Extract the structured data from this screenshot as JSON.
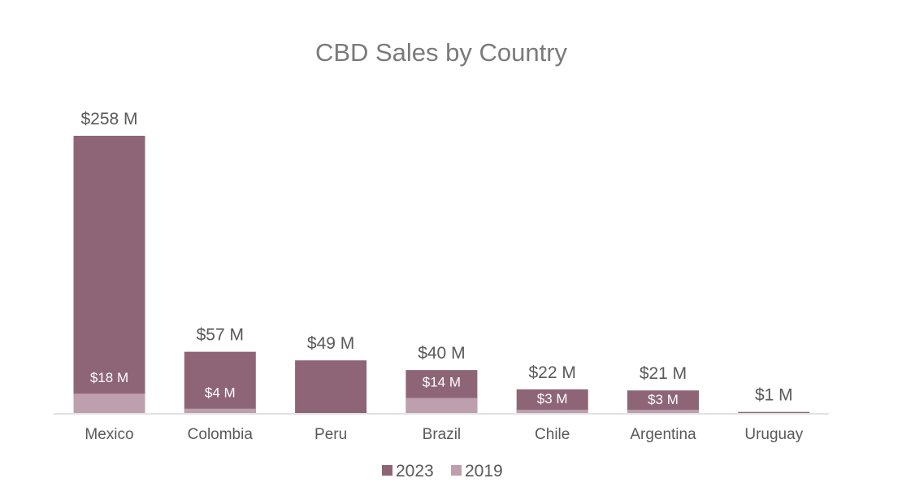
{
  "chart_data": {
    "type": "bar",
    "title": "CBD Sales by Country",
    "xlabel": "",
    "ylabel": "",
    "ylim": [
      0,
      258
    ],
    "grid": false,
    "legend_position": "bottom",
    "categories": [
      "Mexico",
      "Colombia",
      "Peru",
      "Brazil",
      "Chile",
      "Argentina",
      "Uruguay"
    ],
    "series": [
      {
        "name": "2023",
        "color": "#8e6577",
        "values": [
          258,
          57,
          49,
          40,
          22,
          21,
          1
        ],
        "labels": [
          "$258 M",
          "$57 M",
          "$49 M",
          "$40 M",
          "$22 M",
          "$21 M",
          "$1 M"
        ]
      },
      {
        "name": "2019",
        "color": "#bd9fae",
        "values": [
          18,
          4,
          null,
          14,
          3,
          3,
          null
        ],
        "labels": [
          "$18 M",
          "$4 M",
          null,
          "$14 M",
          "$3 M",
          "$3 M",
          null
        ]
      }
    ]
  }
}
